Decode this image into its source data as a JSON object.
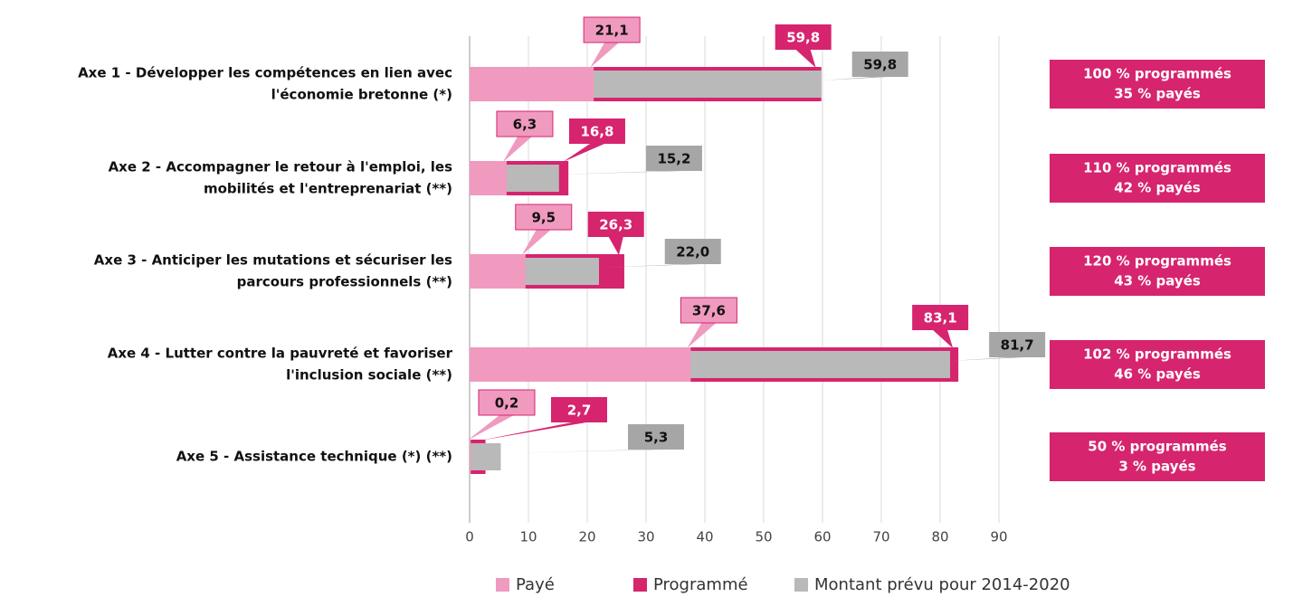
{
  "chart_data": {
    "type": "overlap-bar",
    "categories": [
      [
        "Axe 1 - Développer les compétences en lien avec",
        "l'économie bretonne (*)"
      ],
      [
        "Axe 2 - Accompagner le retour à l'emploi, les",
        "mobilités et l'entreprenariat (**)"
      ],
      [
        "Axe 3 - Anticiper les mutations et sécuriser les",
        "parcours professionnels (**)"
      ],
      [
        "Axe 4 - Lutter contre la pauvreté et favoriser",
        "l'inclusion sociale (**)"
      ],
      [
        "Axe 5 - Assistance technique (*) (**)"
      ]
    ],
    "series": [
      {
        "name": "Payé",
        "color": "#f09ac0",
        "values": [
          21.1,
          6.3,
          9.5,
          37.6,
          0.2
        ],
        "value_labels": [
          "21,1",
          "6,3",
          "9,5",
          "37,6",
          "0,2"
        ]
      },
      {
        "name": "Programmé",
        "color": "#d6246e",
        "values": [
          59.8,
          16.8,
          26.3,
          83.1,
          2.7
        ],
        "value_labels": [
          "59,8",
          "16,8",
          "26,3",
          "83,1",
          "2,7"
        ]
      },
      {
        "name": "Montant prévu pour 2014-2020",
        "color": "#b9b9b9",
        "values": [
          59.8,
          15.2,
          22.0,
          81.7,
          5.3
        ],
        "value_labels": [
          "59,8",
          "15,2",
          "22,0",
          "81,7",
          "5,3"
        ]
      }
    ],
    "annotations": [
      [
        "100 % programmés",
        "35 % payés"
      ],
      [
        "110 % programmés",
        "42 % payés"
      ],
      [
        "120 % programmés",
        "43 % payés"
      ],
      [
        "102 % programmés",
        "46 % payés"
      ],
      [
        "50 % programmés",
        "3 % payés"
      ]
    ],
    "xlim": [
      0,
      90
    ],
    "xticks": [
      0,
      10,
      20,
      30,
      40,
      50,
      60,
      70,
      80,
      90
    ],
    "grid": true,
    "legend": "bottom"
  }
}
